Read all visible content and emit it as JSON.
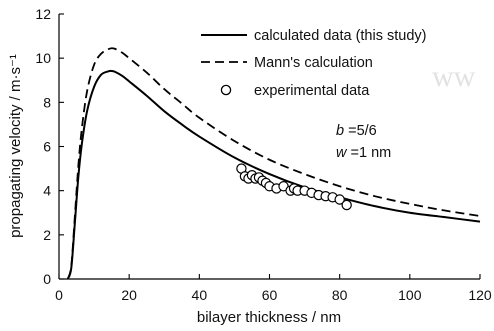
{
  "watermark": "ww",
  "chart_data": {
    "type": "line",
    "xlabel": "bilayer thickness / nm",
    "ylabel": "propagating velocity / m·s⁻¹",
    "xlim": [
      0,
      120
    ],
    "ylim": [
      0,
      12
    ],
    "x_ticks": [
      "0",
      "20",
      "40",
      "60",
      "80",
      "100",
      "120"
    ],
    "y_ticks": [
      "0",
      "2",
      "4",
      "6",
      "8",
      "10",
      "12"
    ],
    "grid": false,
    "legend_position": "top-right",
    "annotation": {
      "b_sym": "b",
      "b_val": " =5/6",
      "w_sym": "w",
      "w_val": " =1 nm"
    },
    "series": [
      {
        "name": "calculated data (this study)",
        "style": "solid",
        "color": "#000000",
        "x": [
          2.5,
          3.5,
          4.5,
          5.5,
          6.5,
          8,
          10,
          12,
          14,
          15,
          16,
          18,
          20,
          25,
          30,
          35,
          40,
          50,
          60,
          70,
          80,
          90,
          100,
          110,
          120
        ],
        "y": [
          0,
          0.5,
          2.5,
          4.6,
          6.1,
          7.6,
          8.7,
          9.25,
          9.4,
          9.42,
          9.38,
          9.2,
          8.95,
          8.3,
          7.6,
          7.0,
          6.45,
          5.5,
          4.75,
          4.15,
          3.7,
          3.3,
          3.0,
          2.8,
          2.6
        ]
      },
      {
        "name": "Mann's calculation",
        "style": "dashed",
        "color": "#000000",
        "x": [
          2.5,
          3.5,
          4.5,
          5.5,
          6.5,
          8,
          10,
          12,
          14,
          15,
          16,
          18,
          20,
          25,
          30,
          35,
          40,
          50,
          60,
          70,
          80,
          90,
          100,
          110,
          120
        ],
        "y": [
          0,
          0.6,
          2.8,
          5.1,
          6.8,
          8.5,
          9.7,
          10.2,
          10.4,
          10.45,
          10.42,
          10.25,
          10.0,
          9.35,
          8.6,
          7.95,
          7.3,
          6.25,
          5.4,
          4.75,
          4.2,
          3.75,
          3.4,
          3.1,
          2.85
        ]
      },
      {
        "name": "experimental data",
        "style": "open-circle",
        "color": "#000000",
        "x": [
          52,
          53,
          54,
          55,
          56,
          57,
          58,
          59,
          60,
          62,
          64,
          66,
          67,
          68,
          70,
          72,
          74,
          76,
          78,
          80,
          82
        ],
        "y": [
          5.0,
          4.65,
          4.55,
          4.7,
          4.55,
          4.6,
          4.45,
          4.35,
          4.2,
          4.1,
          4.2,
          4.0,
          4.1,
          4.0,
          4.0,
          3.9,
          3.8,
          3.75,
          3.7,
          3.6,
          3.35
        ]
      }
    ]
  }
}
